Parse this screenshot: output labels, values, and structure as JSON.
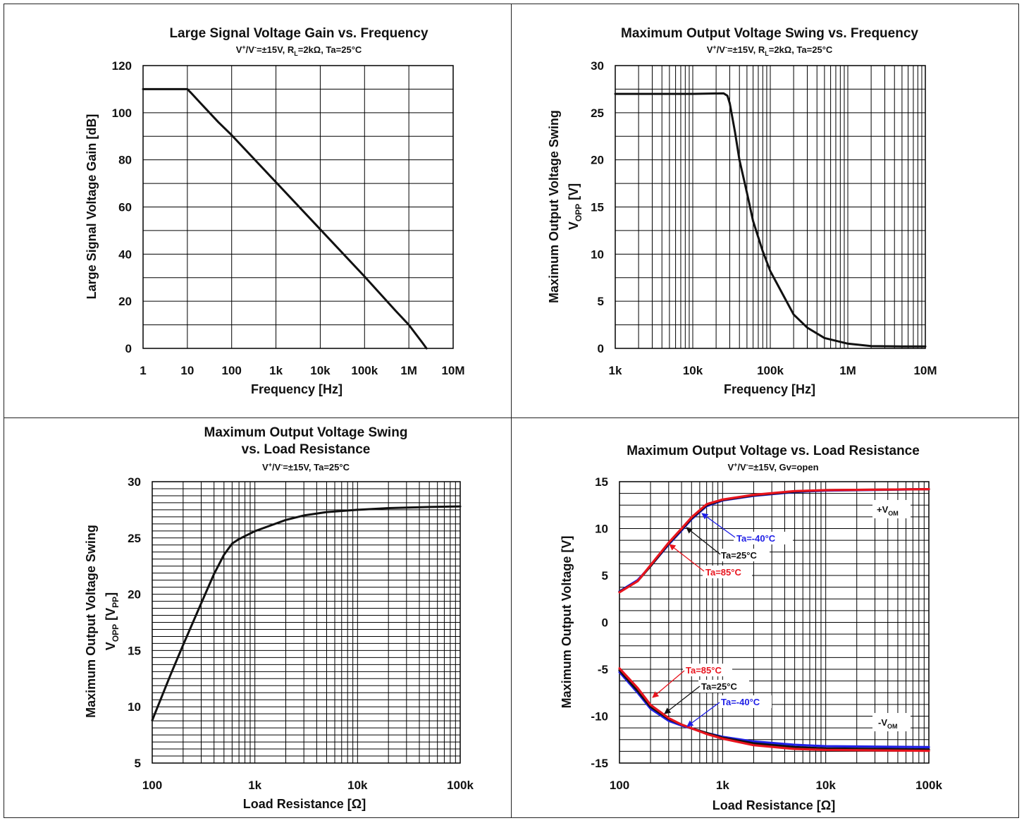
{
  "colors": {
    "black": "#111111",
    "red": "#e8141e",
    "blue": "#1f1fe6",
    "grid": "#000000"
  },
  "chart_data": [
    {
      "type": "line",
      "title": "Large Signal Voltage Gain vs. Frequency",
      "subtitle": "V⁺/V⁻=±15V, Rₗ=2kΩ, Ta=25°C",
      "subtitle_parts": {
        "a": "V",
        "a_sup": "+",
        "b": "/V",
        "b_sup": "-",
        "c": "=±15V, R",
        "c_sub": "L",
        "d": "=2kΩ, Ta=25°C"
      },
      "xlabel": "Frequency [Hz]",
      "ylabel": "Large Signal Voltage Gain [dB]",
      "xscale": "log",
      "xlim": [
        1,
        10000000
      ],
      "ylim": [
        0,
        120
      ],
      "xticks": [
        "1",
        "10",
        "100",
        "1k",
        "10k",
        "100k",
        "1M",
        "10M"
      ],
      "yticks": [
        "0",
        "20",
        "40",
        "60",
        "80",
        "100",
        "120"
      ],
      "grid": true,
      "series": [
        {
          "x": [
            1,
            5,
            10,
            12,
            20,
            50,
            100,
            1000,
            10000,
            100000,
            500000,
            1000000,
            2000000,
            2500000
          ],
          "y": [
            110,
            110,
            110,
            108.5,
            104,
            96,
            90.5,
            70.5,
            50.5,
            30.5,
            16,
            10,
            2.5,
            0
          ]
        }
      ]
    },
    {
      "type": "line",
      "title": "Maximum Output Voltage Swing vs. Frequency",
      "subtitle_parts": {
        "a": "V",
        "a_sup": "+",
        "b": "/V",
        "b_sup": "-",
        "c": "=±15V, R",
        "c_sub": "L",
        "d": "=2kΩ, Ta=25°C"
      },
      "xlabel": "Frequency [Hz]",
      "ylabel_line1": "Maximum Output Voltage Swing",
      "ylabel_line2_main": "V",
      "ylabel_line2_sub": "OPP",
      "ylabel_line2_rest": " [V]",
      "xscale": "log",
      "xlim": [
        1000,
        10000000
      ],
      "ylim": [
        0,
        30
      ],
      "xticks": [
        "1k",
        "10k",
        "100k",
        "1M",
        "10M"
      ],
      "yticks": [
        "0",
        "5",
        "10",
        "15",
        "20",
        "25",
        "30"
      ],
      "grid": true,
      "series": [
        {
          "x": [
            1000,
            10000,
            25000,
            28000,
            30000,
            35000,
            40000,
            50000,
            60000,
            80000,
            100000,
            150000,
            200000,
            300000,
            500000,
            1000000,
            2000000,
            5000000,
            10000000
          ],
          "y": [
            27,
            27,
            27.05,
            26.8,
            26,
            23,
            20,
            16.5,
            13.5,
            10.3,
            8.2,
            5.5,
            3.6,
            2.2,
            1.1,
            0.5,
            0.25,
            0.2,
            0.2
          ]
        }
      ]
    },
    {
      "type": "line",
      "title_line1": "Maximum Output Voltage Swing",
      "title_line2": "vs. Load Resistance",
      "subtitle_parts": {
        "a": "V",
        "a_sup": "+",
        "b": "/V",
        "b_sup": "-",
        "c": "=±15V, Ta=25°C"
      },
      "xlabel": "Load Resistance [Ω]",
      "ylabel_line1": "Maximum Output Voltage Swing",
      "ylabel_line2_main": "V",
      "ylabel_line2_sub": "OPP",
      "ylabel_line2_rest": " [V",
      "ylabel_line2_sub2": "PP",
      "ylabel_line2_end": "]",
      "xscale": "log",
      "xlim": [
        100,
        100000
      ],
      "ylim": [
        5,
        30
      ],
      "xticks": [
        "100",
        "1k",
        "10k",
        "100k"
      ],
      "yticks": [
        "5",
        "10",
        "15",
        "20",
        "25",
        "30"
      ],
      "grid": true,
      "series": [
        {
          "x": [
            100,
            150,
            200,
            300,
            400,
            500,
            600,
            700,
            1000,
            2000,
            3000,
            5000,
            10000,
            20000,
            50000,
            100000
          ],
          "y": [
            8.8,
            12.8,
            15.5,
            19.2,
            21.8,
            23.5,
            24.5,
            24.9,
            25.6,
            26.6,
            27,
            27.3,
            27.5,
            27.65,
            27.75,
            27.8
          ]
        }
      ]
    },
    {
      "type": "line",
      "title": "Maximum Output Voltage vs. Load Resistance",
      "subtitle_parts": {
        "a": "V",
        "a_sup": "+",
        "b": "/V",
        "b_sup": "-",
        "c": "=±15V, Gv=open"
      },
      "xlabel": "Load Resistance [Ω]",
      "ylabel": "Maximum Output Voltage [V]",
      "xscale": "log",
      "xlim": [
        100,
        100000
      ],
      "ylim": [
        -15,
        15
      ],
      "xticks": [
        "100",
        "1k",
        "10k",
        "100k"
      ],
      "yticks": [
        "-15",
        "-10",
        "-5",
        "0",
        "5",
        "10",
        "15"
      ],
      "grid": true,
      "series": [
        {
          "name": "Ta=-40°C",
          "group": "+V",
          "x": [
            100,
            150,
            200,
            300,
            400,
            500,
            700,
            1000,
            2000,
            5000,
            10000,
            100000
          ],
          "y": [
            3.3,
            4.5,
            6,
            8.3,
            9.8,
            11,
            12.4,
            13,
            13.5,
            13.9,
            14.05,
            14.2
          ]
        },
        {
          "name": "Ta=25°C",
          "group": "+V",
          "x": [
            100,
            150,
            200,
            300,
            400,
            500,
            700,
            1000,
            2000,
            5000,
            10000,
            100000
          ],
          "y": [
            3.25,
            4.4,
            6,
            8.4,
            9.9,
            11.1,
            12.5,
            13.05,
            13.55,
            13.95,
            14.1,
            14.2
          ]
        },
        {
          "name": "Ta=85°C",
          "group": "+V",
          "x": [
            100,
            150,
            200,
            300,
            400,
            500,
            700,
            1000,
            2000,
            5000,
            10000,
            100000
          ],
          "y": [
            3.2,
            4.4,
            6.1,
            8.5,
            10,
            11.2,
            12.6,
            13.1,
            13.6,
            14,
            14.1,
            14.2
          ]
        },
        {
          "name": "Ta=-40°C",
          "group": "-V",
          "x": [
            100,
            150,
            200,
            300,
            400,
            500,
            700,
            1000,
            2000,
            5000,
            10000,
            100000
          ],
          "y": [
            -5.3,
            -7.5,
            -9.2,
            -10.5,
            -11,
            -11.3,
            -11.8,
            -12.2,
            -12.7,
            -13.05,
            -13.2,
            -13.3
          ]
        },
        {
          "name": "Ta=25°C",
          "group": "-V",
          "x": [
            100,
            150,
            200,
            300,
            400,
            500,
            700,
            1000,
            2000,
            5000,
            10000,
            100000
          ],
          "y": [
            -5.1,
            -7.3,
            -9,
            -10.3,
            -10.9,
            -11.3,
            -11.8,
            -12.3,
            -12.9,
            -13.3,
            -13.45,
            -13.55
          ]
        },
        {
          "name": "Ta=85°C",
          "group": "-V",
          "x": [
            100,
            150,
            200,
            300,
            400,
            500,
            700,
            1000,
            2000,
            5000,
            10000,
            100000
          ],
          "y": [
            -4.9,
            -7,
            -8.8,
            -10.2,
            -10.9,
            -11.3,
            -11.9,
            -12.4,
            -13.1,
            -13.5,
            -13.6,
            -13.7
          ]
        }
      ],
      "annotations": {
        "pos_label_main": "+V",
        "pos_label_sub": "OM",
        "neg_label_main": "-V",
        "neg_label_sub": "OM",
        "pos_m40": "Ta=-40°C",
        "pos_25": "Ta=25°C",
        "pos_85": "Ta=85°C",
        "neg_85": "Ta=85°C",
        "neg_25": "Ta=25°C",
        "neg_m40": "Ta=-40°C"
      }
    }
  ]
}
